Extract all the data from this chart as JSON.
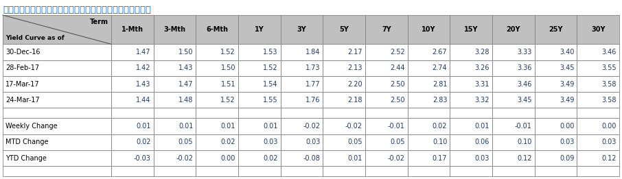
{
  "title": "อัตราผลตอบแทนพันธบัตรรัฐบาล",
  "header_terms": [
    "1-Mth",
    "3-Mth",
    "6-Mth",
    "1Y",
    "3Y",
    "5Y",
    "7Y",
    "10Y",
    "15Y",
    "20Y",
    "25Y",
    "30Y"
  ],
  "col0_top": "Term",
  "col0_bottom": "Yield Curve as of",
  "data_rows": [
    [
      "30-Dec-16",
      "1.47",
      "1.50",
      "1.52",
      "1.53",
      "1.84",
      "2.17",
      "2.52",
      "2.67",
      "3.28",
      "3.33",
      "3.40",
      "3.46"
    ],
    [
      "28-Feb-17",
      "1.42",
      "1.43",
      "1.50",
      "1.52",
      "1.73",
      "2.13",
      "2.44",
      "2.74",
      "3.26",
      "3.36",
      "3.45",
      "3.55"
    ],
    [
      "17-Mar-17",
      "1.43",
      "1.47",
      "1.51",
      "1.54",
      "1.77",
      "2.20",
      "2.50",
      "2.81",
      "3.31",
      "3.46",
      "3.49",
      "3.58"
    ],
    [
      "24-Mar-17",
      "1.44",
      "1.48",
      "1.52",
      "1.55",
      "1.76",
      "2.18",
      "2.50",
      "2.83",
      "3.32",
      "3.45",
      "3.49",
      "3.58"
    ]
  ],
  "change_rows": [
    [
      "Weekly Change",
      "0.01",
      "0.01",
      "0.01",
      "0.01",
      "-0.02",
      "-0.02",
      "-0.01",
      "0.02",
      "0.01",
      "-0.01",
      "0.00",
      "0.00"
    ],
    [
      "MTD Change",
      "0.02",
      "0.05",
      "0.02",
      "0.03",
      "0.03",
      "0.05",
      "0.05",
      "0.10",
      "0.06",
      "0.10",
      "0.03",
      "0.03"
    ],
    [
      "YTD Change",
      "-0.03",
      "-0.02",
      "0.00",
      "0.02",
      "-0.08",
      "0.01",
      "-0.02",
      "0.17",
      "0.03",
      "0.12",
      "0.09",
      "0.12"
    ]
  ],
  "header_bg": "#c0c0c0",
  "title_color": "#0070c0",
  "data_color": "#1f3864",
  "label_color": "#000000",
  "border_color": "#808080",
  "font_size": 7.0,
  "title_font_size": 9.5
}
